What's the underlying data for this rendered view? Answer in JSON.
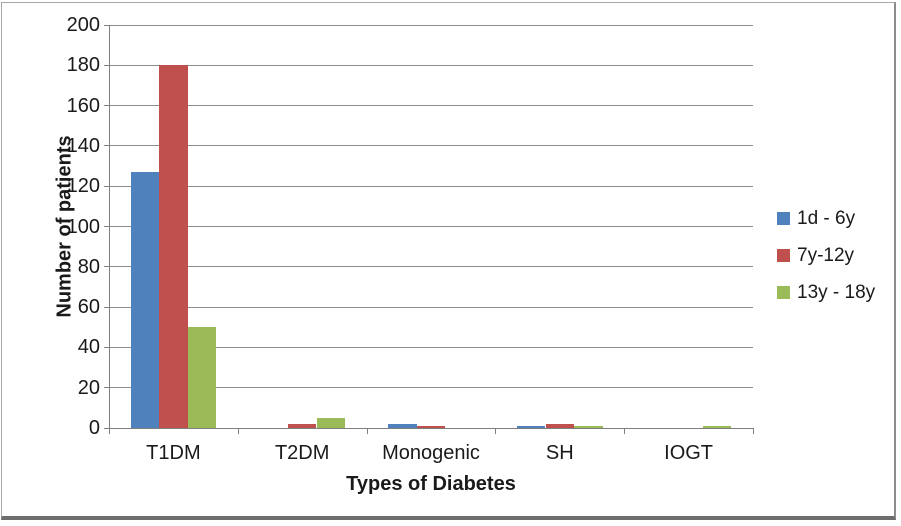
{
  "chart_data": {
    "type": "bar",
    "title": "",
    "xlabel": "Types of Diabetes",
    "ylabel": "Number of patients",
    "categories": [
      "T1DM",
      "T2DM",
      "Monogenic",
      "SH",
      "IOGT"
    ],
    "series": [
      {
        "name": "1d - 6y",
        "color": "#4F81BD",
        "values": [
          127,
          0,
          2,
          1,
          0
        ]
      },
      {
        "name": "7y-12y",
        "color": "#C0504D",
        "values": [
          180,
          2,
          1,
          2,
          0
        ]
      },
      {
        "name": "13y - 18y",
        "color": "#9BBB59",
        "values": [
          50,
          5,
          0,
          1,
          1
        ]
      }
    ],
    "ylim": [
      0,
      200
    ],
    "ytick_step": 20,
    "ytick_labels": [
      "0",
      "20",
      "40",
      "60",
      "80",
      "100",
      "120",
      "140",
      "160",
      "180",
      "200"
    ],
    "grid": true,
    "legend_position": "right",
    "colors": {
      "gridline": "#8E8E8E",
      "axis": "#7F7F7F",
      "text": "#1A1A1A",
      "background": "#FFFFFF"
    }
  }
}
